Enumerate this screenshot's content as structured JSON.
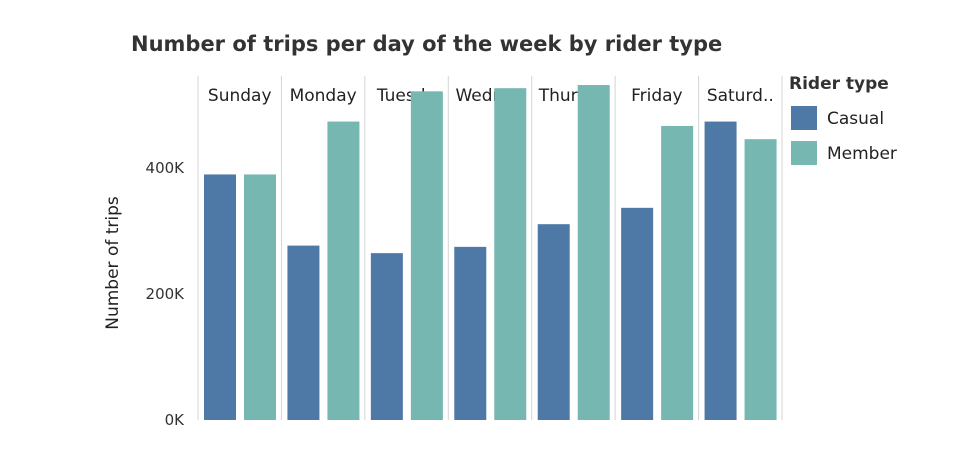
{
  "chart_data": {
    "type": "bar",
    "title": "Number of trips per day of the week by rider type",
    "ylabel": "Number of trips",
    "xlabel": "",
    "ylim": [
      0,
      540000
    ],
    "yticks": [
      0,
      200000,
      400000
    ],
    "ytick_labels": [
      "0K",
      "200K",
      "400K"
    ],
    "categories": [
      "Sunday",
      "Monday",
      "Tuesday",
      "Wednesday",
      "Thursday",
      "Friday",
      "Saturday"
    ],
    "category_labels": [
      "Sunday",
      "Monday",
      "Tuesd..",
      "Wedne..",
      "Thursd..",
      "Friday",
      "Saturd.."
    ],
    "legend": {
      "title": "Rider type",
      "position": "right"
    },
    "series": [
      {
        "name": "Casual",
        "color": "#4e79a7",
        "values": [
          390000,
          277000,
          265000,
          275000,
          311000,
          337000,
          474000
        ]
      },
      {
        "name": "Member",
        "color": "#76b7b2",
        "values": [
          390000,
          474000,
          522000,
          527000,
          532000,
          467000,
          446000
        ]
      }
    ]
  }
}
